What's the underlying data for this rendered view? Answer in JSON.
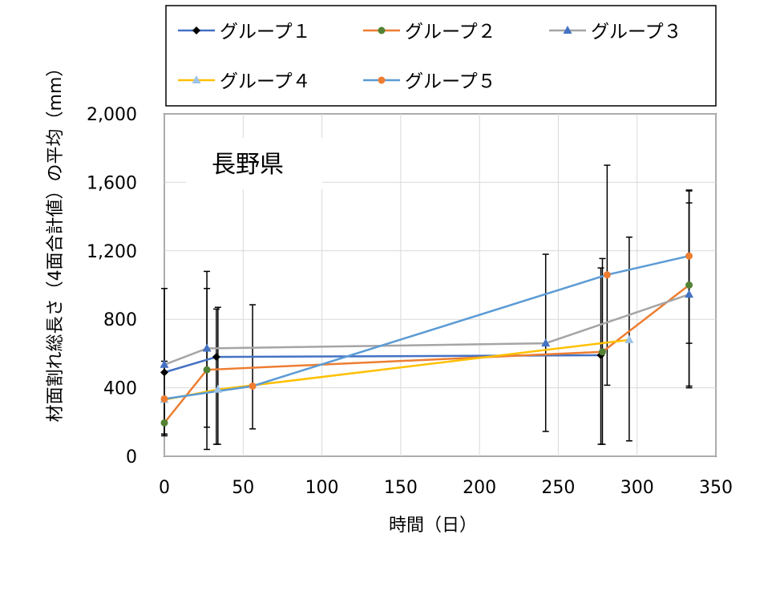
{
  "chart_data": {
    "type": "line",
    "annotation": "長野県",
    "xlabel": "時間（日）",
    "ylabel": "材面割れ総長さ（4面合計値）の平均（mm）",
    "xlim": [
      0,
      350
    ],
    "ylim": [
      0,
      2000
    ],
    "xticks": [
      0,
      50,
      100,
      150,
      200,
      250,
      300,
      350
    ],
    "yticks": [
      0,
      400,
      800,
      1200,
      1600,
      2000
    ],
    "xtick_labels": [
      "0",
      "50",
      "100",
      "150",
      "200",
      "250",
      "300",
      "350"
    ],
    "ytick_labels": [
      "0",
      "400",
      "800",
      "1,200",
      "1,600",
      "2,000"
    ],
    "grid": true,
    "legend_position": "top",
    "series": [
      {
        "name": "グループ１",
        "color": "#4472C4",
        "marker": "diamond",
        "marker_color": "#000000",
        "points": [
          {
            "x": 0,
            "y": 490,
            "err_low": 370,
            "err_high": 490
          },
          {
            "x": 33,
            "y": 580,
            "err_low": 510,
            "err_high": 280
          },
          {
            "x": 277,
            "y": 590,
            "err_low": 520,
            "err_high": 510
          }
        ]
      },
      {
        "name": "グループ２",
        "color": "#ED7D31",
        "marker": "circle",
        "marker_color": "#548235",
        "points": [
          {
            "x": 0,
            "y": 195,
            "err_low": 75,
            "err_high": 0
          },
          {
            "x": 27,
            "y": 505,
            "err_low": 465,
            "err_high": 575
          },
          {
            "x": 278,
            "y": 610,
            "err_low": 540,
            "err_high": 545
          },
          {
            "x": 333,
            "y": 1000,
            "err_low": 600,
            "err_high": 550
          }
        ]
      },
      {
        "name": "グループ３",
        "color": "#A5A5A5",
        "marker": "triangle",
        "marker_color": "#4472C4",
        "points": [
          {
            "x": 0,
            "y": 535,
            "err_low": 0,
            "err_high": 20
          },
          {
            "x": 27,
            "y": 630,
            "err_low": 460,
            "err_high": 350
          },
          {
            "x": 242,
            "y": 660,
            "err_low": 515,
            "err_high": 520
          },
          {
            "x": 333,
            "y": 945,
            "err_low": 285,
            "err_high": 535
          }
        ]
      },
      {
        "name": "グループ４",
        "color": "#FFC000",
        "marker": "triangle",
        "marker_color": "#9DC3E6",
        "points": [
          {
            "x": 0,
            "y": 330,
            "err_low": 200,
            "err_high": 0
          },
          {
            "x": 34,
            "y": 390,
            "err_low": 320,
            "err_high": 480
          },
          {
            "x": 295,
            "y": 680,
            "err_low": 590,
            "err_high": 600
          }
        ]
      },
      {
        "name": "グループ５",
        "color": "#5B9BD5",
        "marker": "circle",
        "marker_color": "#ED7D31",
        "points": [
          {
            "x": 0,
            "y": 335,
            "err_low": 0,
            "err_high": 0
          },
          {
            "x": 56,
            "y": 410,
            "err_low": 250,
            "err_high": 475
          },
          {
            "x": 281,
            "y": 1060,
            "err_low": 645,
            "err_high": 640
          },
          {
            "x": 333,
            "y": 1170,
            "err_low": 760,
            "err_high": 385
          }
        ]
      }
    ]
  }
}
